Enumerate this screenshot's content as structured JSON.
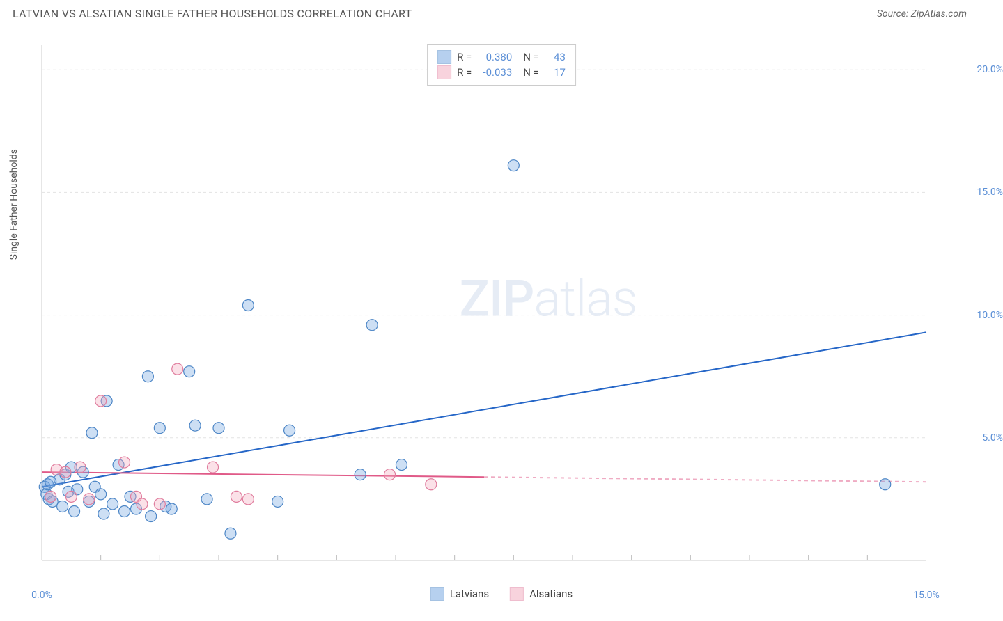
{
  "title": "LATVIAN VS ALSATIAN SINGLE FATHER HOUSEHOLDS CORRELATION CHART",
  "source_label": "Source: ZipAtlas.com",
  "ylabel": "Single Father Households",
  "watermark_bold": "ZIP",
  "watermark_light": "atlas",
  "chart": {
    "type": "scatter",
    "xlim": [
      0,
      15
    ],
    "ylim": [
      0,
      21
    ],
    "xticks": [
      0,
      15
    ],
    "xtick_labels": [
      "0.0%",
      "15.0%"
    ],
    "yticks": [
      5,
      10,
      15,
      20
    ],
    "ytick_labels": [
      "5.0%",
      "10.0%",
      "15.0%",
      "20.0%"
    ],
    "x_minor_ticks": [
      1,
      2,
      3,
      4,
      5,
      6,
      7,
      8,
      9,
      10,
      11,
      12,
      13,
      14
    ],
    "background_color": "#ffffff",
    "grid_color": "#e3e3e3",
    "axis_color": "#cccccc",
    "tick_color": "#bbbbbb",
    "marker_radius": 8,
    "marker_stroke_width": 1.2,
    "marker_fill_opacity": 0.35,
    "line_width": 2,
    "series": [
      {
        "name": "Latvians",
        "color": "#6fa2e0",
        "stroke": "#4d86c6",
        "line_color": "#2566c7",
        "R": "0.380",
        "N": "43",
        "trend": {
          "x1": 0,
          "y1": 3.0,
          "x2": 15,
          "y2": 9.3,
          "solid_until": 15
        },
        "points": [
          [
            0.05,
            3.0
          ],
          [
            0.08,
            2.7
          ],
          [
            0.1,
            3.1
          ],
          [
            0.12,
            2.5
          ],
          [
            0.15,
            3.2
          ],
          [
            0.18,
            2.4
          ],
          [
            0.3,
            3.3
          ],
          [
            0.35,
            2.2
          ],
          [
            0.4,
            3.5
          ],
          [
            0.45,
            2.8
          ],
          [
            0.5,
            3.8
          ],
          [
            0.55,
            2.0
          ],
          [
            0.6,
            2.9
          ],
          [
            0.7,
            3.6
          ],
          [
            0.8,
            2.4
          ],
          [
            0.85,
            5.2
          ],
          [
            0.9,
            3.0
          ],
          [
            1.0,
            2.7
          ],
          [
            1.05,
            1.9
          ],
          [
            1.1,
            6.5
          ],
          [
            1.2,
            2.3
          ],
          [
            1.3,
            3.9
          ],
          [
            1.4,
            2.0
          ],
          [
            1.5,
            2.6
          ],
          [
            1.6,
            2.1
          ],
          [
            1.8,
            7.5
          ],
          [
            1.85,
            1.8
          ],
          [
            2.0,
            5.4
          ],
          [
            2.1,
            2.2
          ],
          [
            2.2,
            2.1
          ],
          [
            2.5,
            7.7
          ],
          [
            2.6,
            5.5
          ],
          [
            2.8,
            2.5
          ],
          [
            3.0,
            5.4
          ],
          [
            3.2,
            1.1
          ],
          [
            3.5,
            10.4
          ],
          [
            4.0,
            2.4
          ],
          [
            4.2,
            5.3
          ],
          [
            5.6,
            9.6
          ],
          [
            5.4,
            3.5
          ],
          [
            6.1,
            3.9
          ],
          [
            8.0,
            16.1
          ],
          [
            14.3,
            3.1
          ]
        ]
      },
      {
        "name": "Alsatians",
        "color": "#f3a8bd",
        "stroke": "#e07d9e",
        "line_color": "#e05a88",
        "R": "-0.033",
        "N": "17",
        "trend": {
          "x1": 0,
          "y1": 3.6,
          "x2": 15,
          "y2": 3.2,
          "solid_until": 7.5
        },
        "points": [
          [
            0.15,
            2.6
          ],
          [
            0.25,
            3.7
          ],
          [
            0.4,
            3.6
          ],
          [
            0.5,
            2.6
          ],
          [
            0.65,
            3.8
          ],
          [
            0.8,
            2.5
          ],
          [
            1.0,
            6.5
          ],
          [
            1.4,
            4.0
          ],
          [
            1.6,
            2.6
          ],
          [
            1.7,
            2.3
          ],
          [
            2.0,
            2.3
          ],
          [
            2.3,
            7.8
          ],
          [
            2.9,
            3.8
          ],
          [
            3.3,
            2.6
          ],
          [
            3.5,
            2.5
          ],
          [
            5.9,
            3.5
          ],
          [
            6.6,
            3.1
          ]
        ]
      }
    ],
    "legend_top": {
      "r_label": "R =",
      "n_label": "N ="
    },
    "legend_bottom": {
      "items": [
        "Latvians",
        "Alsatians"
      ]
    }
  }
}
